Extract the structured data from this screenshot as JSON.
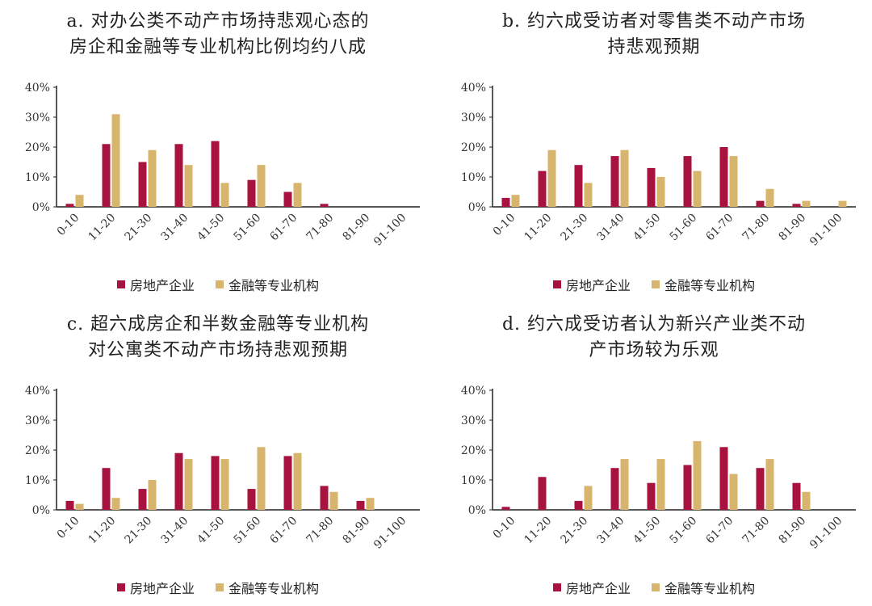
{
  "colors": {
    "real_estate": "#A8123E",
    "financial": "#D8B56C"
  },
  "legend": {
    "real_estate": "房地产企业",
    "financial": "金融等专业机构"
  },
  "chart_data": [
    {
      "type": "bar",
      "title_line1": "a. 对办公类不动产市场持悲观心态的",
      "title_line2": "房企和金融等专业机构比例均约八成",
      "categories": [
        "0-10",
        "11-20",
        "21-30",
        "31-40",
        "41-50",
        "51-60",
        "61-70",
        "71-80",
        "81-90",
        "91-100"
      ],
      "ylim": [
        0,
        40
      ],
      "yticks": [
        "0%",
        "10%",
        "20%",
        "30%",
        "40%"
      ],
      "series": [
        {
          "name": "房地产企业",
          "values": [
            1,
            21,
            15,
            21,
            22,
            9,
            5,
            1,
            0,
            0
          ]
        },
        {
          "name": "金融等专业机构",
          "values": [
            4,
            31,
            19,
            14,
            8,
            14,
            8,
            0,
            0,
            0
          ]
        }
      ]
    },
    {
      "type": "bar",
      "title_line1": "b. 约六成受访者对零售类不动产市场",
      "title_line2": "持悲观预期",
      "categories": [
        "0-10",
        "11-20",
        "21-30",
        "31-40",
        "41-50",
        "51-60",
        "61-70",
        "71-80",
        "81-90",
        "91-100"
      ],
      "ylim": [
        0,
        40
      ],
      "yticks": [
        "0%",
        "10%",
        "20%",
        "30%",
        "40%"
      ],
      "series": [
        {
          "name": "房地产企业",
          "values": [
            3,
            12,
            14,
            17,
            13,
            17,
            20,
            2,
            1,
            0
          ]
        },
        {
          "name": "金融等专业机构",
          "values": [
            4,
            19,
            8,
            19,
            10,
            12,
            17,
            6,
            2,
            2
          ]
        }
      ]
    },
    {
      "type": "bar",
      "title_line1": "c. 超六成房企和半数金融等专业机构",
      "title_line2": "对公寓类不动产市场持悲观预期",
      "categories": [
        "0-10",
        "11-20",
        "21-30",
        "31-40",
        "41-50",
        "51-60",
        "61-70",
        "71-80",
        "81-90",
        "91-100"
      ],
      "ylim": [
        0,
        40
      ],
      "yticks": [
        "0%",
        "10%",
        "20%",
        "30%",
        "40%"
      ],
      "series": [
        {
          "name": "房地产企业",
          "values": [
            3,
            14,
            7,
            19,
            18,
            7,
            18,
            8,
            3,
            0
          ]
        },
        {
          "name": "金融等专业机构",
          "values": [
            2,
            4,
            10,
            17,
            17,
            21,
            19,
            6,
            4,
            0
          ]
        }
      ]
    },
    {
      "type": "bar",
      "title_line1": "d. 约六成受访者认为新兴产业类不动",
      "title_line2": "产市场较为乐观",
      "categories": [
        "0-10",
        "11-20",
        "21-30",
        "31-40",
        "41-50",
        "51-60",
        "61-70",
        "71-80",
        "81-90",
        "91-100"
      ],
      "ylim": [
        0,
        40
      ],
      "yticks": [
        "0%",
        "10%",
        "20%",
        "30%",
        "40%"
      ],
      "series": [
        {
          "name": "房地产企业",
          "values": [
            1,
            11,
            3,
            14,
            9,
            15,
            21,
            14,
            9,
            0
          ]
        },
        {
          "name": "金融等专业机构",
          "values": [
            0,
            0,
            8,
            17,
            17,
            23,
            12,
            17,
            6,
            0
          ]
        }
      ]
    }
  ]
}
